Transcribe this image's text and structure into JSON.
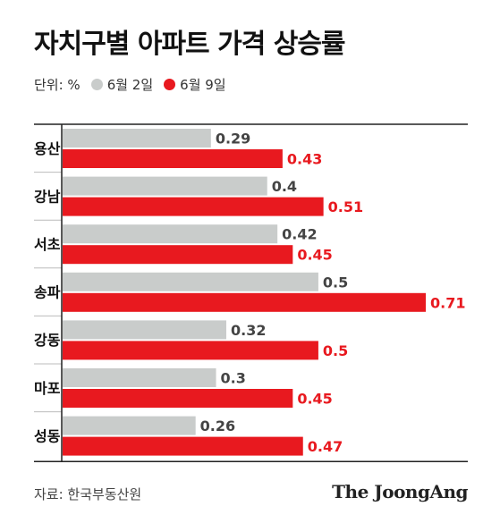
{
  "title": "자치구별 아파트 가격 상승률",
  "legend": {
    "unit": "단위: %",
    "items": [
      {
        "label": "6월 2일",
        "color": "#c9cccb"
      },
      {
        "label": "6월 9일",
        "color": "#e8191f"
      }
    ]
  },
  "chart_data": {
    "type": "bar",
    "orientation": "horizontal",
    "categories": [
      "용산",
      "강남",
      "서초",
      "송파",
      "강동",
      "마포",
      "성동"
    ],
    "series": [
      {
        "name": "6월 2일",
        "color": "#c9cccb",
        "label_color": "#444444",
        "values": [
          0.29,
          0.4,
          0.42,
          0.5,
          0.32,
          0.3,
          0.26
        ]
      },
      {
        "name": "6월 9일",
        "color": "#e8191f",
        "label_color": "#e8191f",
        "values": [
          0.43,
          0.51,
          0.45,
          0.71,
          0.5,
          0.45,
          0.47
        ]
      }
    ],
    "value_labels": [
      [
        "0.29",
        "0.4",
        "0.42",
        "0.5",
        "0.32",
        "0.3",
        "0.26"
      ],
      [
        "0.43",
        "0.51",
        "0.45",
        "0.71",
        "0.5",
        "0.45",
        "0.47"
      ]
    ],
    "xlim": [
      0,
      0.71
    ],
    "grid": false,
    "legend_position": "top-left"
  },
  "source": "자료: 한국부동산원",
  "logo": "The JoongAng"
}
